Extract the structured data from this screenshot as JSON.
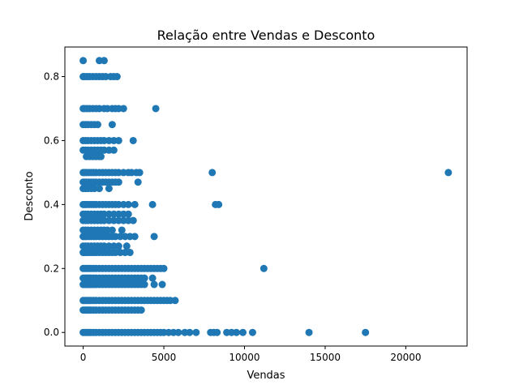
{
  "chart_data": {
    "type": "scatter",
    "title": "Relação entre Vendas e Desconto",
    "xlabel": "Vendas",
    "ylabel": "Desconto",
    "xlim": [
      -1135,
      23800
    ],
    "ylim": [
      -0.0425,
      0.8925
    ],
    "xticks": [
      0,
      5000,
      10000,
      15000,
      20000
    ],
    "xtick_labels": [
      "0",
      "5000",
      "10000",
      "15000",
      "20000"
    ],
    "yticks": [
      0.0,
      0.2,
      0.4,
      0.6,
      0.8
    ],
    "ytick_labels": [
      "0.0",
      "0.2",
      "0.4",
      "0.6",
      "0.8"
    ],
    "grid": false,
    "marker_color": "#1f77b4",
    "bands": [
      {
        "y": 0.85,
        "x": [
          0,
          1000,
          1300
        ]
      },
      {
        "y": 0.8,
        "x": [
          0,
          100,
          250,
          400,
          600,
          800,
          1000,
          1200,
          1400,
          1700,
          1900,
          2100
        ]
      },
      {
        "y": 0.7,
        "x": [
          0,
          100,
          250,
          400,
          600,
          800,
          1000,
          1300,
          1500,
          1800,
          2000,
          2200,
          2500,
          4500
        ]
      },
      {
        "y": 0.65,
        "x": [
          0,
          150,
          300,
          500,
          700,
          900,
          1800
        ]
      },
      {
        "y": 0.6,
        "x": [
          0,
          150,
          300,
          500,
          700,
          900,
          1100,
          1300,
          1600,
          1900,
          2200,
          3100
        ]
      },
      {
        "y": 0.57,
        "x": [
          0,
          150,
          300,
          500,
          700,
          900,
          1100,
          1300,
          1600,
          1900
        ]
      },
      {
        "y": 0.55,
        "x": [
          200,
          400,
          600,
          800,
          1000,
          1100
        ]
      },
      {
        "y": 0.5,
        "x": [
          0,
          100,
          200,
          350,
          500,
          650,
          800,
          1000,
          1200,
          1400,
          1600,
          1800,
          2000,
          2200,
          2500,
          2800,
          3000,
          3300,
          3500,
          8000,
          22638
        ]
      },
      {
        "y": 0.47,
        "x": [
          0,
          100,
          200,
          350,
          500,
          650,
          800,
          1000,
          1200,
          1400,
          1600,
          1800,
          2000,
          2200,
          3400
        ]
      },
      {
        "y": 0.45,
        "x": [
          0,
          150,
          300,
          500,
          700,
          1000,
          1600
        ]
      },
      {
        "y": 0.4,
        "x": [
          0,
          100,
          200,
          350,
          500,
          650,
          800,
          1000,
          1200,
          1400,
          1600,
          1800,
          2000,
          2200,
          2500,
          2800,
          3200,
          4300,
          8200,
          8400
        ]
      },
      {
        "y": 0.37,
        "x": [
          0,
          150,
          300,
          500,
          700,
          900,
          1100,
          1300,
          1600,
          1900,
          2200,
          2500,
          2800
        ]
      },
      {
        "y": 0.35,
        "x": [
          0,
          150,
          300,
          500,
          700,
          900,
          1100,
          1300,
          1600,
          1900,
          2200,
          2500,
          2800,
          3100
        ]
      },
      {
        "y": 0.32,
        "x": [
          0,
          150,
          300,
          500,
          700,
          900,
          1100,
          1300,
          1500,
          1800,
          2400
        ]
      },
      {
        "y": 0.3,
        "x": [
          0,
          100,
          200,
          350,
          500,
          650,
          800,
          1000,
          1200,
          1400,
          1600,
          1800,
          2000,
          2300,
          2600,
          2900,
          3200,
          4400
        ]
      },
      {
        "y": 0.27,
        "x": [
          0,
          150,
          300,
          500,
          700,
          900,
          1100,
          1300,
          1600,
          1900,
          2200,
          2700
        ]
      },
      {
        "y": 0.25,
        "x": [
          0,
          100,
          200,
          350,
          500,
          650,
          800,
          1000,
          1200,
          1400,
          1600,
          1800,
          2000,
          2300,
          2600,
          2900
        ]
      },
      {
        "y": 0.2,
        "x": [
          0,
          100,
          200,
          300,
          400,
          500,
          650,
          800,
          1000,
          1200,
          1400,
          1600,
          1800,
          2000,
          2200,
          2400,
          2600,
          2800,
          3000,
          3200,
          3400,
          3600,
          3800,
          4000,
          4200,
          4400,
          4600,
          4800,
          5000,
          11200
        ]
      },
      {
        "y": 0.17,
        "x": [
          0,
          100,
          200,
          300,
          400,
          500,
          650,
          800,
          1000,
          1200,
          1400,
          1600,
          1800,
          2000,
          2200,
          2400,
          2600,
          2800,
          3000,
          3200,
          3400,
          3600,
          3800,
          4300
        ]
      },
      {
        "y": 0.15,
        "x": [
          0,
          100,
          200,
          300,
          400,
          500,
          650,
          800,
          1000,
          1200,
          1400,
          1600,
          1800,
          2000,
          2200,
          2400,
          2600,
          2800,
          3000,
          3200,
          3400,
          3600,
          3800,
          4400,
          4900
        ]
      },
      {
        "y": 0.1,
        "x": [
          0,
          100,
          200,
          300,
          400,
          500,
          650,
          800,
          1000,
          1200,
          1400,
          1600,
          1800,
          2000,
          2200,
          2400,
          2600,
          2800,
          3000,
          3200,
          3400,
          3600,
          3800,
          4000,
          4200,
          4400,
          4600,
          4800,
          5000,
          5200,
          5400,
          5700
        ]
      },
      {
        "y": 0.07,
        "x": [
          0,
          100,
          200,
          300,
          400,
          500,
          650,
          800,
          1000,
          1200,
          1400,
          1600,
          1800,
          2000,
          2200,
          2400,
          2600,
          2800,
          3000,
          3200,
          3400,
          3600
        ]
      },
      {
        "y": 0.0,
        "x": [
          0,
          100,
          200,
          300,
          400,
          500,
          650,
          800,
          1000,
          1200,
          1400,
          1600,
          1800,
          2000,
          2200,
          2400,
          2600,
          2800,
          3000,
          3200,
          3400,
          3600,
          3800,
          4000,
          4200,
          4400,
          4600,
          4800,
          5000,
          5300,
          5600,
          5900,
          6300,
          6600,
          7000,
          7900,
          8100,
          8300,
          8900,
          9200,
          9500,
          9900,
          10500,
          14000,
          17500
        ]
      }
    ]
  }
}
